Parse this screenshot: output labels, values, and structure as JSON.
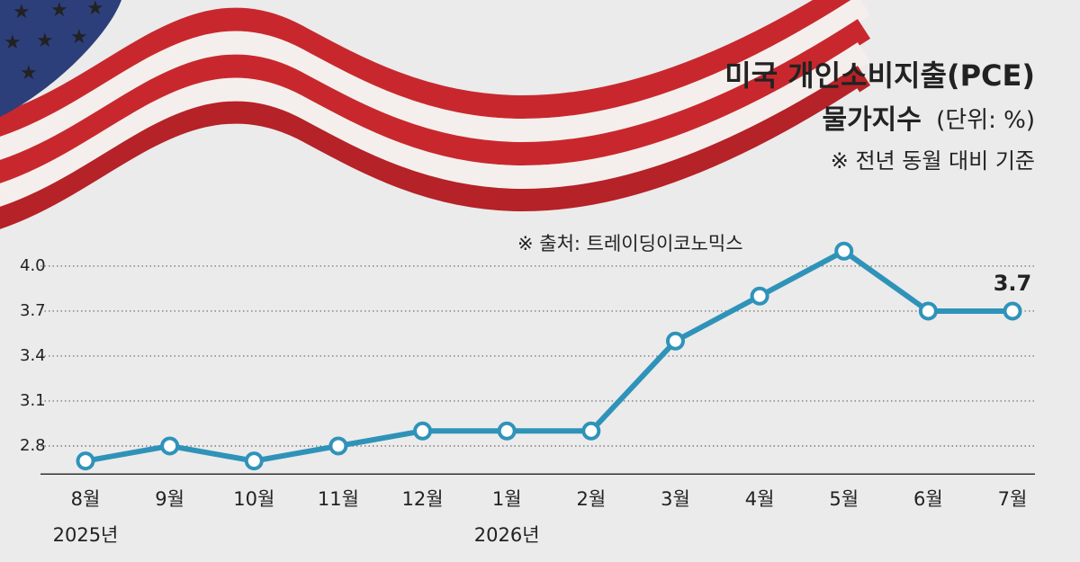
{
  "chart_data": {
    "type": "line",
    "title": "미국 개인소비지출(PCE)",
    "subtitle": "물가지수",
    "unit_note": "(단위: %)",
    "note": "※ 전년 동월 대비 기준",
    "source": "※ 출처: 트레이딩이코노믹스",
    "categories": [
      "8월",
      "9월",
      "10월",
      "11월",
      "12월",
      "1월",
      "2월",
      "3월",
      "4월",
      "5월",
      "6월",
      "7월"
    ],
    "category_sublabels": [
      "2025년",
      null,
      null,
      null,
      null,
      "2026년",
      null,
      null,
      null,
      null,
      null,
      null
    ],
    "series": [
      {
        "name": "PCE",
        "color": "#2f93b9",
        "values": [
          2.7,
          2.8,
          2.7,
          2.8,
          2.9,
          2.9,
          2.9,
          3.5,
          3.8,
          4.1,
          3.7,
          3.7
        ],
        "value_labels": [
          null,
          null,
          null,
          null,
          null,
          null,
          null,
          null,
          null,
          null,
          null,
          "3.7"
        ]
      }
    ],
    "ylim": [
      2.6,
      4.2
    ],
    "yticks": [
      {
        "value": 2.8,
        "label": "2.8"
      },
      {
        "value": 3.1,
        "label": "3.1"
      },
      {
        "value": 3.4,
        "label": "3.4"
      },
      {
        "value": 3.7,
        "label": "3.7"
      },
      {
        "value": 4.0,
        "label": "4.0"
      }
    ],
    "grid": true
  }
}
